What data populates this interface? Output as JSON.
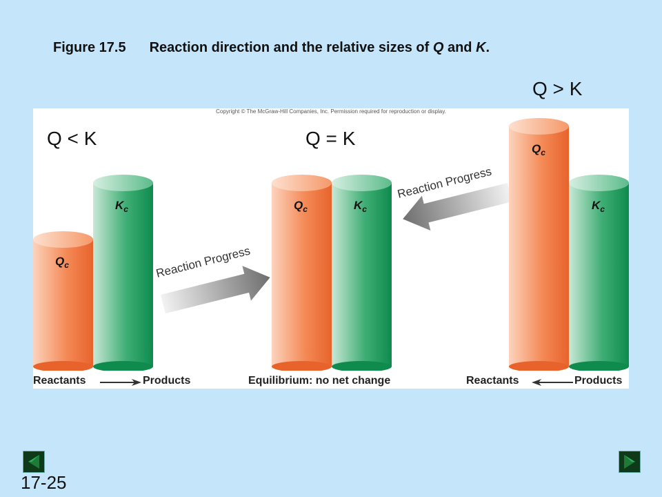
{
  "title": {
    "label": "Figure 17.5",
    "text_prefix": "Reaction direction and the relative sizes of ",
    "q": "Q",
    "and": " and ",
    "k": "K",
    "period": "."
  },
  "conditions": {
    "q_less_k": "Q < K",
    "q_equals_k": "Q = K",
    "q_greater_k": "Q > K"
  },
  "copyright": "Copyright © The McGraw-Hill Companies, Inc. Permission required for reproduction or display.",
  "cylinder_labels": {
    "q": "Q",
    "k": "K",
    "sub": "c"
  },
  "arrows": {
    "progress_label": "Reaction Progress"
  },
  "captions": {
    "left_reactants": "Reactants",
    "left_products": "Products",
    "middle": "Equilibrium: no net change",
    "right_reactants": "Reactants",
    "right_products": "Products"
  },
  "slide_number": "17-25",
  "colors": {
    "background": "#c5e6fa",
    "q_cylinder": "#f07a45",
    "k_cylinder": "#129a5a"
  },
  "icons": {
    "prev": "previous-slide-icon",
    "next": "next-slide-icon"
  }
}
